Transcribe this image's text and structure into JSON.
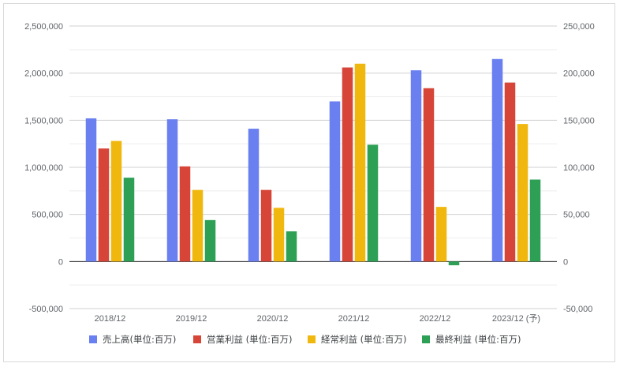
{
  "chart_data": {
    "type": "bar",
    "categories": [
      "2018/12",
      "2019/12",
      "2020/12",
      "2021/12",
      "2022/12",
      "2023/12 (予)"
    ],
    "series": [
      {
        "name": "売上高(単位:百万)",
        "axis": "left",
        "color": "#6a7ff0",
        "values": [
          1520000,
          1510000,
          1410000,
          1700000,
          2030000,
          2150000
        ]
      },
      {
        "name": "営業利益 (単位:百万)",
        "axis": "right",
        "color": "#d64538",
        "values": [
          120000,
          101000,
          76000,
          206000,
          184000,
          190000
        ]
      },
      {
        "name": "経常利益 (単位:百万)",
        "axis": "right",
        "color": "#f0b80f",
        "values": [
          128000,
          76000,
          57000,
          210000,
          58000,
          146000
        ]
      },
      {
        "name": "最終利益 (単位:百万)",
        "axis": "right",
        "color": "#2ea055",
        "values": [
          89000,
          44000,
          32000,
          124000,
          -4000,
          87000
        ]
      }
    ],
    "y_left": {
      "min": -500000,
      "max": 2500000,
      "ticks": [
        -500000,
        0,
        500000,
        1000000,
        1500000,
        2000000,
        2500000
      ]
    },
    "y_right": {
      "min": -50000,
      "max": 250000,
      "ticks": [
        -50000,
        0,
        50000,
        100000,
        150000,
        200000,
        250000
      ]
    },
    "grid": true,
    "legend_position": "bottom"
  }
}
